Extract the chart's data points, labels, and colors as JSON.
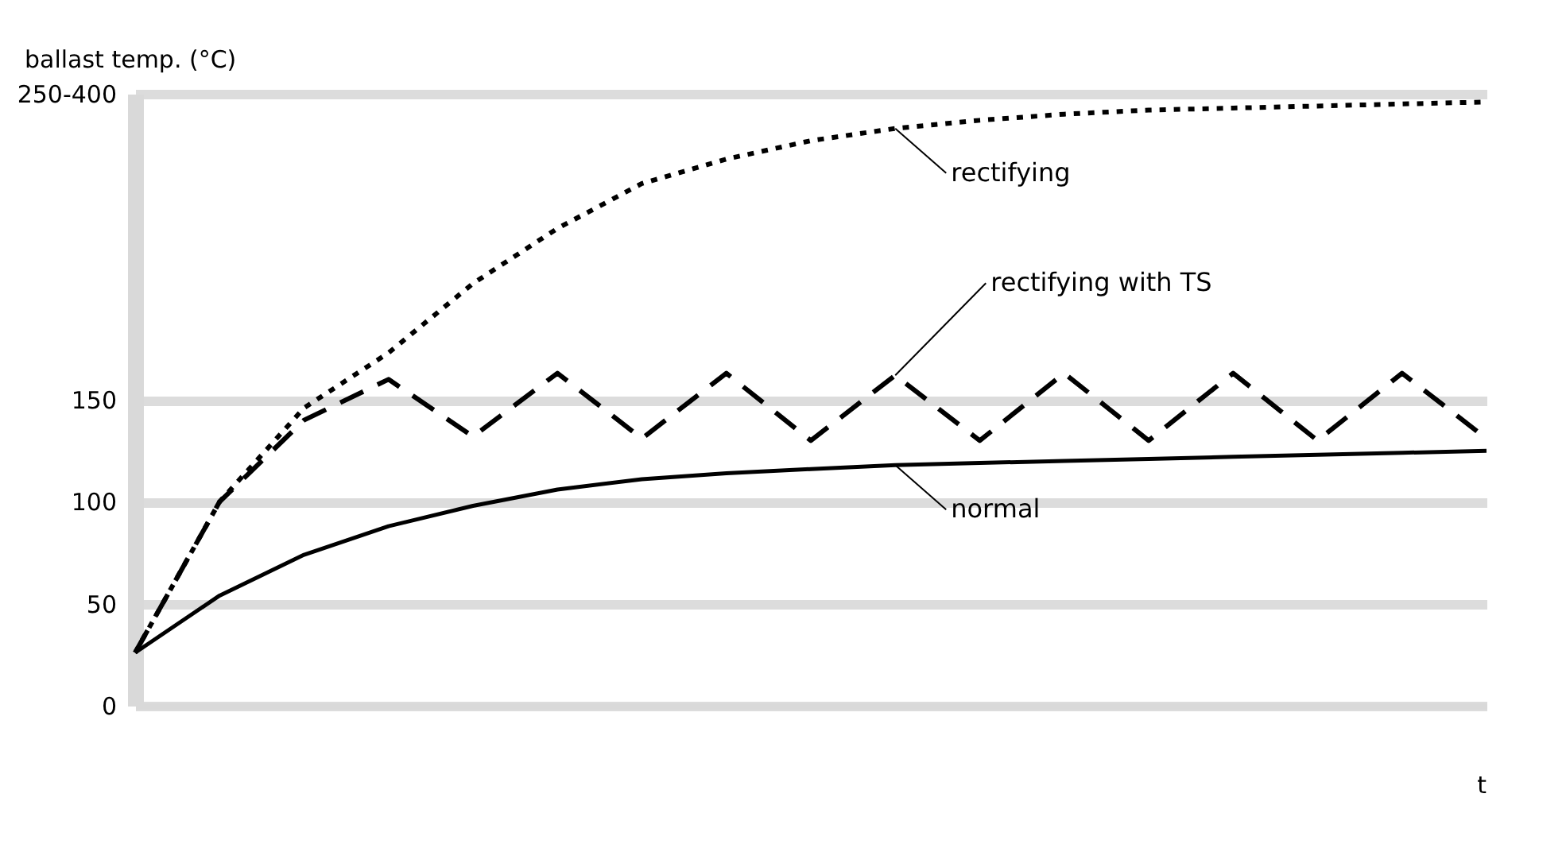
{
  "chart_data": {
    "type": "line",
    "ylabel": "ballast temp. (°C)",
    "xlabel": "t",
    "categories": [
      null,
      null,
      null,
      null,
      null,
      null,
      null,
      null,
      null,
      null,
      null,
      null,
      null,
      null,
      null,
      null,
      null
    ],
    "ylim": [
      0,
      300
    ],
    "yticks": [
      0,
      50,
      100,
      150,
      {
        "value": 300,
        "label": "250-400"
      }
    ],
    "grid": "y",
    "marker": "none",
    "series": [
      {
        "name": "rectifying",
        "color": "#000000",
        "line_style": "dotted",
        "values": [
          26,
          100,
          146,
          173,
          207,
          234,
          256,
          268,
          277,
          283,
          287,
          290,
          292,
          293,
          294,
          295,
          296
        ]
      },
      {
        "name": "rectifying with TS",
        "color": "#000000",
        "line_style": "dashed",
        "values": [
          26,
          100,
          140,
          160,
          132,
          163,
          131,
          163,
          130,
          162,
          130,
          163,
          130,
          163,
          130,
          163,
          131
        ]
      },
      {
        "name": "normal",
        "color": "#000000",
        "line_style": "solid",
        "values": [
          26,
          54,
          74,
          88,
          98,
          106,
          111,
          114,
          116,
          118,
          119,
          120,
          121,
          122,
          123,
          124,
          125
        ]
      }
    ]
  }
}
